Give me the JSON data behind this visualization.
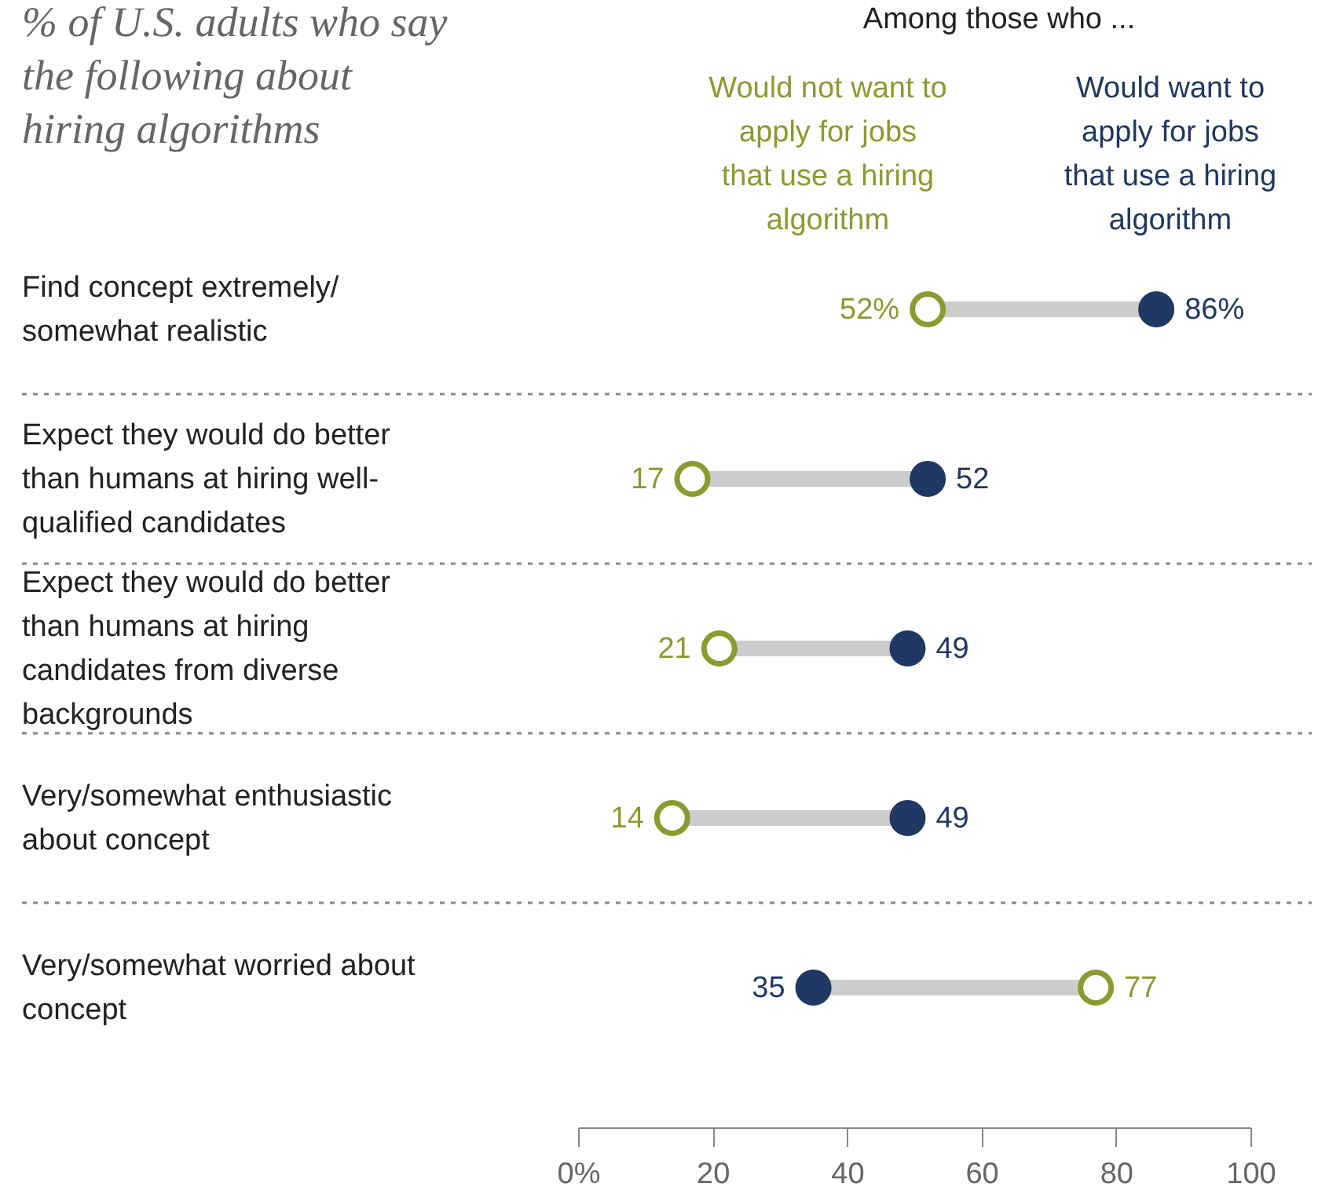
{
  "chart_data": {
    "type": "scatter",
    "orientation": "horizontal",
    "title": "% of U.S. adults who say the following about hiring algorithms",
    "legend_title": "Among those who ...",
    "categories": [
      "Find concept extremely/ somewhat realistic",
      "Expect they would do better than humans at hiring well-qualified candidates",
      "Expect they would do better than humans at hiring candidates from diverse backgrounds",
      "Very/somewhat enthusiastic about concept",
      "Very/somewhat worried about concept"
    ],
    "series": [
      {
        "name": "Would not want to apply for jobs that use a hiring algorithm",
        "color": "#8c9a2f",
        "values": [
          52,
          17,
          21,
          14,
          77
        ],
        "value_labels": [
          "52%",
          "17",
          "21",
          "14",
          "77"
        ]
      },
      {
        "name": "Would want to apply for jobs that use a hiring algorithm",
        "color": "#1f3864",
        "values": [
          86,
          52,
          49,
          49,
          35
        ],
        "value_labels": [
          "86%",
          "52",
          "49",
          "49",
          "35"
        ]
      }
    ],
    "xlim": [
      0,
      100
    ],
    "xticks": [
      {
        "value": 0,
        "label": "0%"
      },
      20,
      40,
      60,
      80,
      100
    ],
    "grid": "y",
    "legend": "top right",
    "marker": "circle"
  }
}
